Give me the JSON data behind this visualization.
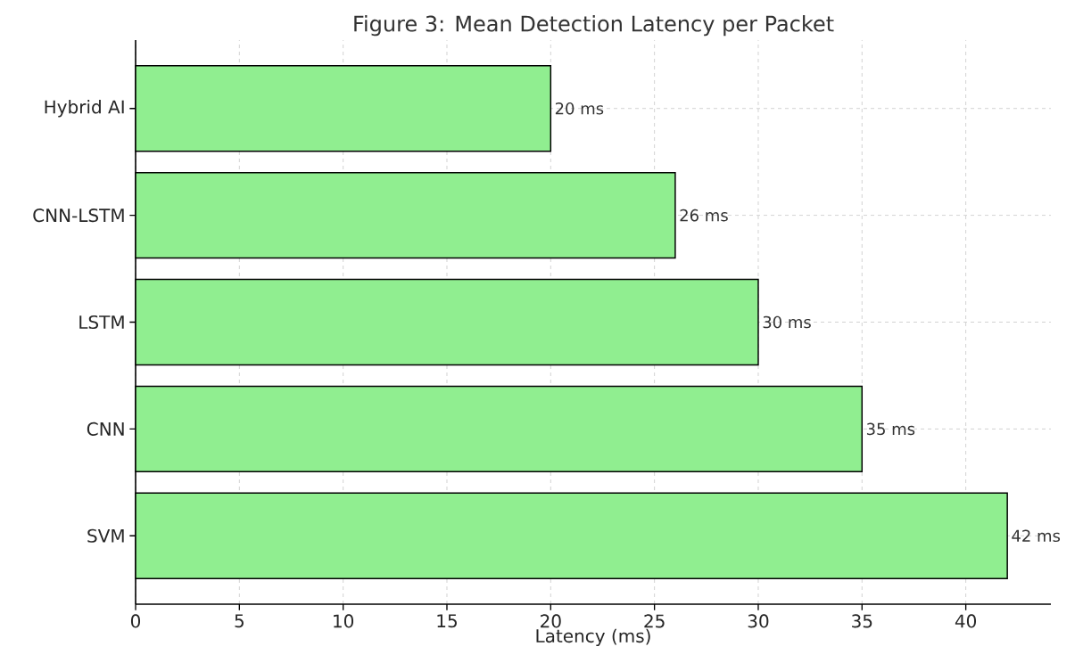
{
  "chart_data": {
    "type": "bar",
    "orientation": "horizontal",
    "title": "Figure 3: Mean Detection Latency per Packet",
    "xlabel": "Latency (ms)",
    "categories": [
      "Hybrid AI",
      "CNN-LSTM",
      "LSTM",
      "CNN",
      "SVM"
    ],
    "values": [
      20,
      26,
      30,
      35,
      42
    ],
    "value_labels": [
      "20 ms",
      "26 ms",
      "30 ms",
      "35 ms",
      "42 ms"
    ],
    "color": "#90ee90",
    "xlim": [
      0,
      44.1
    ],
    "xticks": [
      0,
      5,
      10,
      15,
      20,
      25,
      30,
      35,
      40
    ],
    "grid": true
  }
}
